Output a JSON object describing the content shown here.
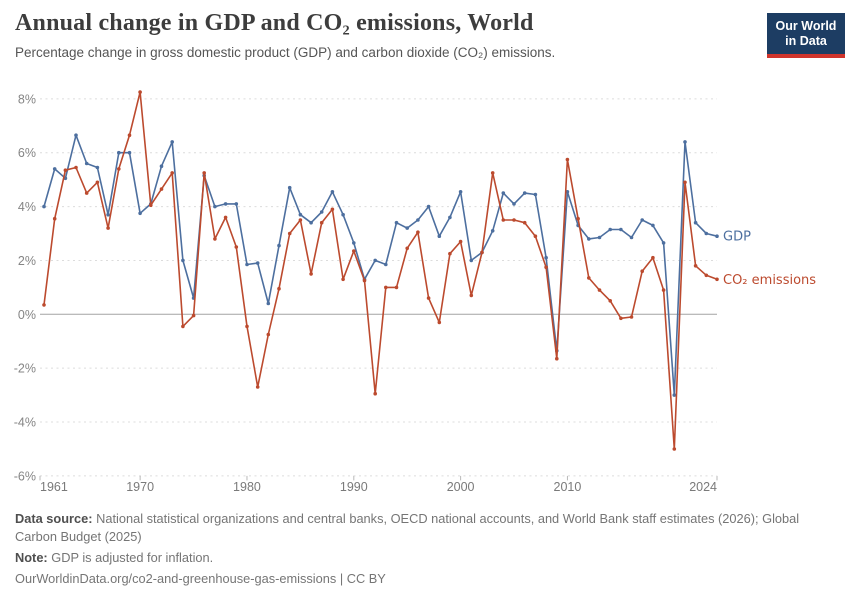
{
  "header": {
    "title": "Annual change in GDP and CO₂ emissions, World",
    "subtitle": "Percentage change in gross domestic product (GDP) and carbon dioxide (CO₂) emissions."
  },
  "logo": {
    "line1": "Our World",
    "line2": "in Data"
  },
  "chart_data": {
    "type": "line",
    "title": "Annual change in GDP and CO₂ emissions, World",
    "x": [
      1961,
      1962,
      1963,
      1964,
      1965,
      1966,
      1967,
      1968,
      1969,
      1970,
      1971,
      1972,
      1973,
      1974,
      1975,
      1976,
      1977,
      1978,
      1979,
      1980,
      1981,
      1982,
      1983,
      1984,
      1985,
      1986,
      1987,
      1988,
      1989,
      1990,
      1991,
      1992,
      1993,
      1994,
      1995,
      1996,
      1997,
      1998,
      1999,
      2000,
      2001,
      2002,
      2003,
      2004,
      2005,
      2006,
      2007,
      2008,
      2009,
      2010,
      2011,
      2012,
      2013,
      2014,
      2015,
      2016,
      2017,
      2018,
      2019,
      2020,
      2021,
      2022,
      2023,
      2024
    ],
    "series": [
      {
        "name": "GDP",
        "color": "#4d6f9f",
        "values": [
          4.0,
          5.4,
          5.05,
          6.65,
          5.6,
          5.45,
          3.7,
          6.0,
          6.0,
          3.75,
          4.1,
          5.5,
          6.4,
          2.0,
          0.6,
          5.15,
          4.0,
          4.1,
          4.1,
          1.85,
          1.9,
          0.4,
          2.55,
          4.7,
          3.7,
          3.4,
          3.8,
          4.55,
          3.7,
          2.65,
          1.3,
          2.0,
          1.85,
          3.4,
          3.2,
          3.5,
          4.0,
          2.9,
          3.6,
          4.55,
          2.0,
          2.3,
          3.1,
          4.5,
          4.1,
          4.5,
          4.45,
          2.1,
          -1.35,
          4.55,
          3.3,
          2.8,
          2.85,
          3.15,
          3.15,
          2.85,
          3.5,
          3.3,
          2.65,
          -3.0,
          6.4,
          3.4,
          3.0,
          2.9
        ]
      },
      {
        "name": "CO₂ emissions",
        "color": "#bc4a2e",
        "values": [
          0.35,
          3.55,
          5.35,
          5.45,
          4.5,
          4.9,
          3.2,
          5.4,
          6.65,
          8.25,
          4.05,
          4.65,
          5.25,
          -0.45,
          -0.05,
          5.25,
          2.8,
          3.6,
          2.5,
          -0.45,
          -2.7,
          -0.75,
          0.95,
          3.0,
          3.5,
          1.5,
          3.4,
          3.9,
          1.3,
          2.35,
          1.25,
          -2.95,
          1.0,
          1.0,
          2.45,
          3.05,
          0.6,
          -0.3,
          2.25,
          2.7,
          0.7,
          2.3,
          5.25,
          3.5,
          3.5,
          3.4,
          2.9,
          1.75,
          -1.65,
          5.75,
          3.55,
          1.35,
          0.9,
          0.5,
          -0.15,
          -0.1,
          1.6,
          2.1,
          0.9,
          -5.0,
          4.9,
          1.8,
          1.45,
          1.3
        ]
      }
    ],
    "ylim": [
      -6,
      8
    ],
    "yticks": [
      -6,
      -4,
      -2,
      0,
      2,
      4,
      6,
      8
    ],
    "ytick_suffix": "%",
    "xticks": [
      1961,
      1970,
      1980,
      1990,
      2000,
      2010,
      2024
    ],
    "grid": "horizontal-dashed",
    "legend_position": "line-end-labels"
  },
  "footer": {
    "data_source_label": "Data source:",
    "data_source_text": "National statistical organizations and central banks, OECD national accounts, and World Bank staff estimates (2026); Global Carbon Budget (2025)",
    "note_label": "Note:",
    "note_text": "GDP is adjusted for inflation.",
    "url": "OurWorldinData.org/co2-and-greenhouse-gas-emissions | CC BY"
  }
}
